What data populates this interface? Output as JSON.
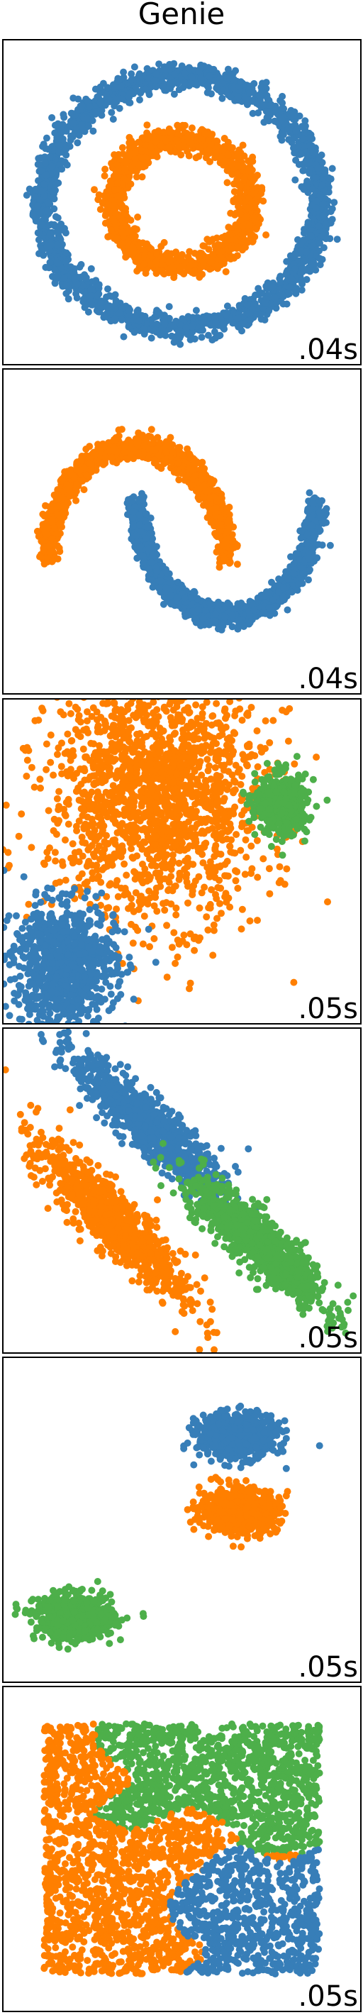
{
  "title": "Genie",
  "colors": {
    "blue": "#377eb8",
    "orange": "#ff7f00",
    "green": "#4daf4a"
  },
  "chart_data": [
    {
      "type": "scatter",
      "dataset": "noisy_circles",
      "time_label": ".04s",
      "series": [
        {
          "color": "#377eb8",
          "shape": "ring",
          "cx": 0,
          "cy": 0,
          "r": 1.0,
          "noise": 0.05,
          "n": 2000
        },
        {
          "color": "#ff7f00",
          "shape": "ring",
          "cx": 0,
          "cy": 0,
          "r": 0.5,
          "noise": 0.05,
          "n": 1200
        }
      ],
      "xlim": [
        -1.3,
        1.3
      ],
      "ylim": [
        -1.3,
        1.3
      ]
    },
    {
      "type": "scatter",
      "dataset": "noisy_moons",
      "time_label": ".04s",
      "series": [
        {
          "color": "#ff7f00",
          "shape": "arc_top",
          "cx": 0,
          "cy": 0,
          "r": 1.0,
          "noise": 0.05,
          "n": 1500
        },
        {
          "color": "#377eb8",
          "shape": "arc_bottom",
          "cx": 1,
          "cy": 0.5,
          "r": 1.0,
          "noise": 0.05,
          "n": 1500
        }
      ],
      "xlim": [
        -1.5,
        2.5
      ],
      "ylim": [
        -1.2,
        1.7
      ]
    },
    {
      "type": "scatter",
      "dataset": "varied",
      "time_label": ".05s",
      "series": [
        {
          "color": "#ff7f00",
          "shape": "blob",
          "cx": -0.2,
          "cy": 0.55,
          "sx": 0.42,
          "sy": 0.42,
          "n": 1800
        },
        {
          "color": "#4daf4a",
          "shape": "blob",
          "cx": 0.78,
          "cy": 0.48,
          "sx": 0.1,
          "sy": 0.1,
          "n": 500
        },
        {
          "color": "#377eb8",
          "shape": "blob",
          "cx": -0.92,
          "cy": -0.6,
          "sx": 0.2,
          "sy": 0.2,
          "n": 900
        }
      ],
      "xlim": [
        -1.4,
        1.4
      ],
      "ylim": [
        -1.0,
        1.2
      ]
    },
    {
      "type": "scatter",
      "dataset": "aniso",
      "time_label": ".05s",
      "series": [
        {
          "color": "#377eb8",
          "shape": "elong",
          "cx": -0.25,
          "cy": 0.45,
          "len": 0.7,
          "wid": 0.08,
          "ang": -40,
          "n": 900
        },
        {
          "color": "#ff7f00",
          "shape": "elong",
          "cx": -0.5,
          "cy": -0.2,
          "len": 0.75,
          "wid": 0.09,
          "ang": -44,
          "n": 900
        },
        {
          "color": "#4daf4a",
          "shape": "elong",
          "cx": 0.55,
          "cy": -0.35,
          "len": 0.65,
          "wid": 0.08,
          "ang": -40,
          "n": 900
        }
      ],
      "xlim": [
        -1.3,
        1.3
      ],
      "ylim": [
        -1.1,
        1.1
      ]
    },
    {
      "type": "scatter",
      "dataset": "blobs",
      "time_label": ".05s",
      "series": [
        {
          "color": "#377eb8",
          "shape": "blob",
          "cx": 0.4,
          "cy": 0.62,
          "sx": 0.14,
          "sy": 0.08,
          "n": 700
        },
        {
          "color": "#ff7f00",
          "shape": "blob",
          "cx": 0.42,
          "cy": 0.07,
          "sx": 0.14,
          "sy": 0.08,
          "n": 700
        },
        {
          "color": "#4daf4a",
          "shape": "blob",
          "cx": -0.78,
          "cy": -0.72,
          "sx": 0.14,
          "sy": 0.08,
          "n": 700
        }
      ],
      "xlim": [
        -1.3,
        1.3
      ],
      "ylim": [
        -1.2,
        1.2
      ]
    },
    {
      "type": "scatter",
      "dataset": "no_structure",
      "time_label": ".05s",
      "series": [
        {
          "color": "#4daf4a",
          "shape": "region",
          "region": "green",
          "n": 1200
        },
        {
          "color": "#ff7f00",
          "shape": "region",
          "region": "orange",
          "n": 1400
        },
        {
          "color": "#377eb8",
          "shape": "region",
          "region": "blue",
          "n": 700
        }
      ],
      "xlim": [
        -0.15,
        1.15
      ],
      "ylim": [
        -0.15,
        1.15
      ]
    }
  ]
}
